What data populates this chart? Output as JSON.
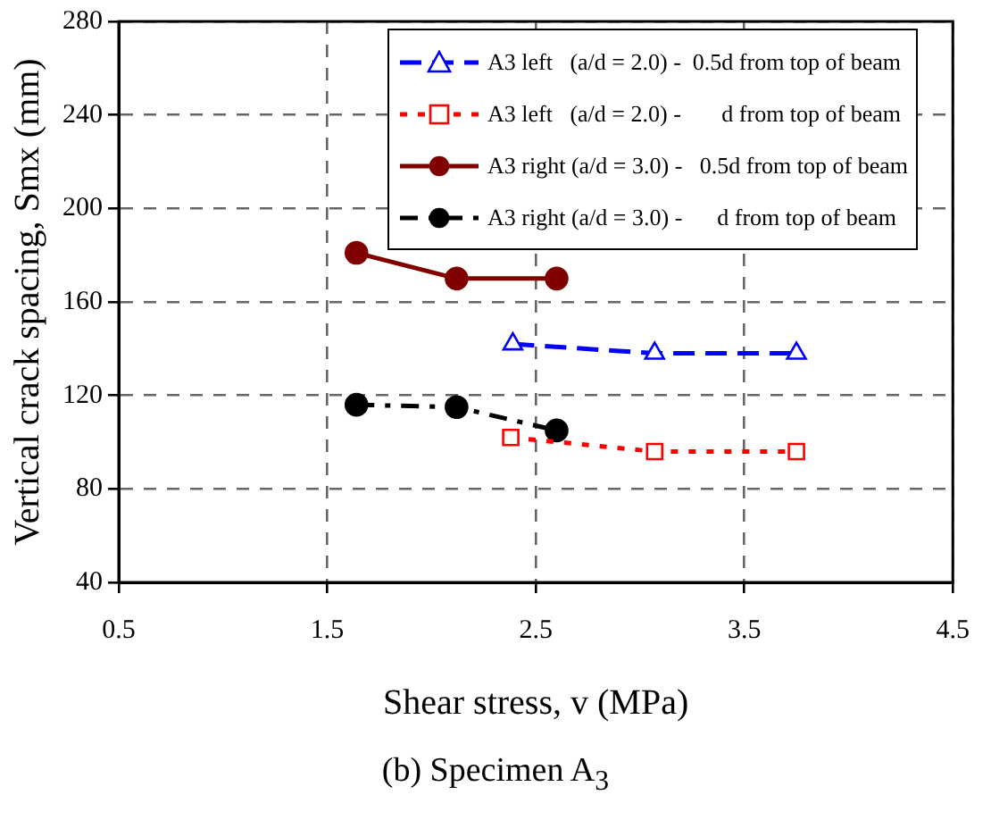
{
  "chart_data": {
    "type": "line",
    "title": "(b) Specimen A$_{3}$",
    "xlabel": "Shear stress, v (MPa)",
    "ylabel": "Vertical crack spacing, Smx (mm)",
    "xlim": [
      0.5,
      4.5
    ],
    "xticks": [
      0.5,
      1.5,
      2.5,
      3.5,
      4.5
    ],
    "ylim": [
      40,
      280
    ],
    "yticks": [
      40,
      80,
      120,
      160,
      200,
      240,
      280
    ],
    "grid": true,
    "legend": "top right",
    "series": [
      {
        "name": "A3 left   (a/d = 2.0) -  0.5d from top of beam",
        "color": "#0000ff",
        "x": [
          2.39,
          3.07,
          3.75
        ],
        "values": [
          142,
          138,
          138
        ],
        "marker": "triangle",
        "line_style": "dashed"
      },
      {
        "name": "A3 left   (a/d = 2.0) -       d from top of beam",
        "color": "#ff0000",
        "x": [
          2.38,
          3.07,
          3.75
        ],
        "values": [
          102,
          96,
          96
        ],
        "marker": "square",
        "line_style": "dotted"
      },
      {
        "name": "A3 right (a/d = 3.0) -   0.5d from top of beam",
        "color": "#800000",
        "x": [
          1.64,
          2.12,
          2.6
        ],
        "values": [
          181,
          170,
          170
        ],
        "marker": "circle",
        "line_style": "solid"
      },
      {
        "name": "A3 right (a/d = 3.0) -      d from top of beam",
        "color": "#000000",
        "x": [
          1.64,
          2.12,
          2.6
        ],
        "values": [
          116,
          115,
          105
        ],
        "marker": "circle",
        "line_style": "dashdot"
      }
    ]
  }
}
